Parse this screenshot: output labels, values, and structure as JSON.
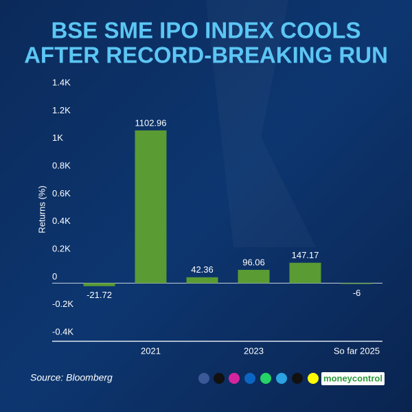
{
  "chart_data": {
    "type": "bar",
    "title": [
      "BSE SME IPO INDEX COOLS",
      "AFTER RECORD-BREAKING RUN"
    ],
    "y_label": "Returns (%)",
    "categories": [
      null,
      "2021",
      null,
      "2023",
      null,
      "So far 2025"
    ],
    "values": [
      -21.72,
      1102.96,
      42.36,
      96.06,
      147.17,
      -6
    ],
    "color": "#5a9b33",
    "ylim": [
      -400,
      1400
    ],
    "yticks": [
      {
        "value": -400,
        "label": "-0.4K"
      },
      {
        "value": -200,
        "label": "-0.2K"
      },
      0,
      {
        "value": 200,
        "label": "0.2K"
      },
      {
        "value": 400,
        "label": "0.4K"
      },
      {
        "value": 600,
        "label": "0.6K"
      },
      {
        "value": 800,
        "label": "0.8K"
      },
      {
        "value": 1000,
        "label": "1K"
      },
      {
        "value": 1200,
        "label": "1.2K"
      },
      {
        "value": 1400,
        "label": "1.4K"
      }
    ],
    "grid": false,
    "source": "Source: Bloomberg",
    "brand": "moneycontrol"
  }
}
